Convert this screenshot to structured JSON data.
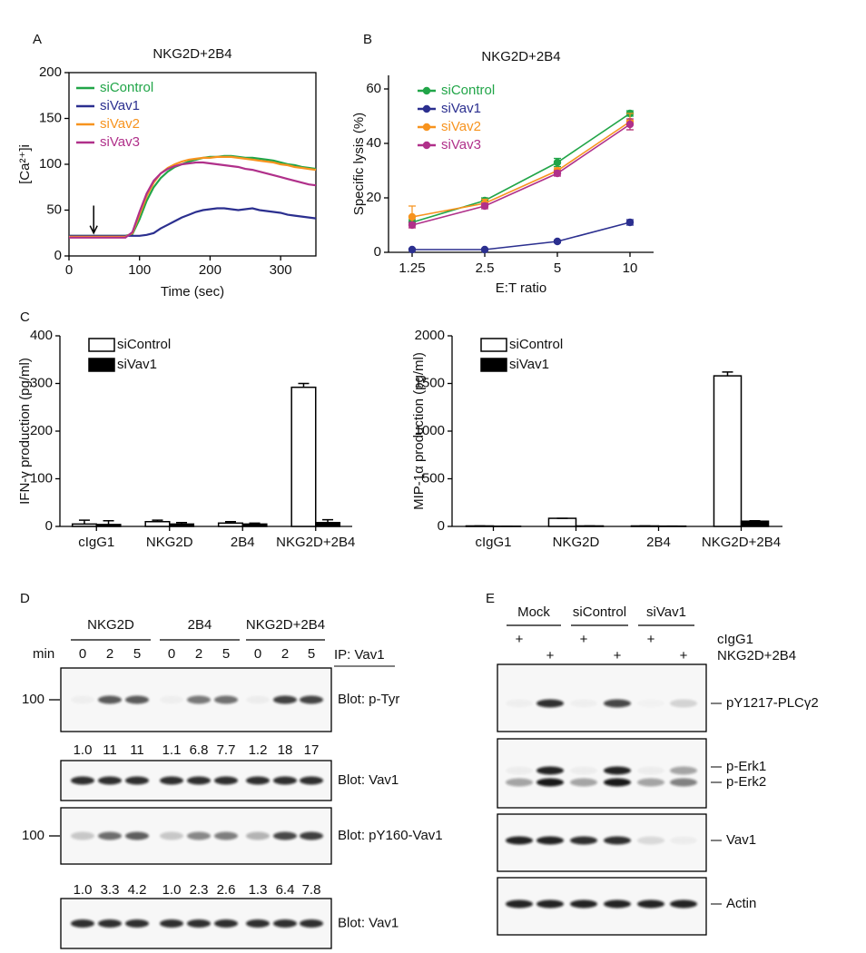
{
  "panel_labels": [
    "A",
    "B",
    "C",
    "D",
    "E"
  ],
  "chart_data": [
    {
      "type": "line",
      "title": "NKG2D+2B4",
      "xlabel": "Time (sec)",
      "ylabel": "[Ca²⁺]i",
      "x": [
        0,
        10,
        20,
        30,
        40,
        50,
        60,
        70,
        80,
        90,
        100,
        110,
        120,
        130,
        140,
        150,
        160,
        170,
        180,
        190,
        200,
        210,
        220,
        230,
        240,
        250,
        260,
        270,
        280,
        290,
        300,
        310,
        320,
        330,
        340,
        350
      ],
      "series": [
        {
          "name": "siControl",
          "color": "#21a548",
          "values": [
            22,
            22,
            22,
            22,
            22,
            22,
            22,
            22,
            22,
            24,
            40,
            60,
            75,
            85,
            92,
            97,
            100,
            103,
            105,
            107,
            108,
            108,
            109,
            109,
            108,
            107,
            107,
            106,
            105,
            104,
            102,
            100,
            99,
            97,
            96,
            95
          ]
        },
        {
          "name": "siVav1",
          "color": "#2b2f8f",
          "values": [
            22,
            22,
            22,
            22,
            22,
            22,
            22,
            22,
            22,
            22,
            22,
            23,
            25,
            30,
            34,
            38,
            42,
            45,
            48,
            50,
            51,
            52,
            52,
            51,
            50,
            51,
            52,
            50,
            49,
            48,
            47,
            45,
            44,
            43,
            42,
            41
          ]
        },
        {
          "name": "siVav2",
          "color": "#f7931e",
          "values": [
            21,
            21,
            21,
            21,
            21,
            21,
            21,
            21,
            21,
            25,
            45,
            65,
            80,
            90,
            96,
            100,
            103,
            105,
            106,
            107,
            107,
            108,
            108,
            108,
            107,
            106,
            105,
            104,
            103,
            102,
            100,
            99,
            97,
            96,
            95,
            94
          ]
        },
        {
          "name": "siVav3",
          "color": "#b0308a",
          "values": [
            20,
            20,
            20,
            20,
            20,
            20,
            20,
            20,
            20,
            26,
            48,
            68,
            82,
            90,
            95,
            98,
            100,
            101,
            102,
            102,
            101,
            100,
            99,
            98,
            97,
            95,
            94,
            92,
            90,
            88,
            86,
            84,
            82,
            80,
            78,
            77
          ]
        }
      ],
      "xlim": [
        0,
        350
      ],
      "xticks": [
        0,
        100,
        200,
        300
      ],
      "ylim": [
        0,
        200
      ],
      "yticks": [
        0,
        50,
        100,
        150,
        200
      ],
      "frame": true,
      "legend": "upper left"
    },
    {
      "type": "line",
      "title": "NKG2D+2B4",
      "xlabel": "E:T ratio",
      "ylabel": "Specific lysis (%)",
      "categories": [
        "1.25",
        "2.5",
        "5",
        "10"
      ],
      "series": [
        {
          "name": "siControl",
          "color": "#21a548",
          "values": [
            11,
            19,
            33,
            51
          ],
          "errors": [
            1,
            1,
            1.5,
            1
          ]
        },
        {
          "name": "siVav1",
          "color": "#2b2f8f",
          "values": [
            1,
            1,
            4,
            11
          ],
          "errors": [
            0.3,
            0.3,
            0.5,
            1
          ]
        },
        {
          "name": "siVav2",
          "color": "#f7931e",
          "values": [
            13,
            18,
            30,
            48
          ],
          "errors": [
            4,
            1.5,
            1,
            3
          ]
        },
        {
          "name": "siVav3",
          "color": "#b0308a",
          "values": [
            10,
            17,
            29,
            47
          ],
          "errors": [
            1,
            1,
            1,
            2
          ]
        }
      ],
      "ylim": [
        0,
        65
      ],
      "yticks": [
        0,
        20,
        40,
        60
      ],
      "markers": true,
      "legend": "upper left"
    },
    {
      "type": "bar",
      "ylabel": "IFN-γ production (pg/ml)",
      "categories": [
        "cIgG1",
        "NKG2D",
        "2B4",
        "NKG2D+2B4"
      ],
      "series": [
        {
          "name": "siControl",
          "color": "#ffffff",
          "values": [
            5,
            10,
            7,
            292
          ],
          "errors": [
            8,
            3,
            3,
            8
          ]
        },
        {
          "name": "siVav1",
          "color": "#000000",
          "values": [
            4,
            5,
            5,
            8
          ],
          "errors": [
            8,
            3,
            2,
            6
          ]
        }
      ],
      "ylim": [
        0,
        400
      ],
      "yticks": [
        0,
        100,
        200,
        300,
        400
      ],
      "legend": "upper left"
    },
    {
      "type": "bar",
      "ylabel": "MIP-1α production (pg/ml)",
      "categories": [
        "cIgG1",
        "NKG2D",
        "2B4",
        "NKG2D+2B4"
      ],
      "series": [
        {
          "name": "siControl",
          "color": "#ffffff",
          "values": [
            5,
            85,
            5,
            1580
          ],
          "errors": [
            0,
            0,
            0,
            40
          ]
        },
        {
          "name": "siVav1",
          "color": "#000000",
          "values": [
            2,
            5,
            3,
            55
          ],
          "errors": [
            0,
            0,
            0,
            5
          ]
        }
      ],
      "ylim": [
        0,
        2000
      ],
      "yticks": [
        0,
        500,
        1000,
        1500,
        2000
      ],
      "legend": "upper left"
    }
  ],
  "blot_d": {
    "header_groups": [
      "NKG2D",
      "2B4",
      "NKG2D+2B4"
    ],
    "time_label": "min",
    "times": [
      "0",
      "2",
      "5",
      "0",
      "2",
      "5",
      "0",
      "2",
      "5"
    ],
    "ip_label": "IP: Vav1",
    "blots": [
      {
        "label": "Blot: p-Tyr",
        "marker": "100",
        "quantification": [
          "1.0",
          "11",
          "11",
          "1.1",
          "6.8",
          "7.7",
          "1.2",
          "18",
          "17"
        ]
      },
      {
        "label": "Blot: Vav1"
      },
      {
        "label": "Blot: pY160-Vav1",
        "marker": "100",
        "quantification": [
          "1.0",
          "3.3",
          "4.2",
          "1.0",
          "2.3",
          "2.6",
          "1.3",
          "6.4",
          "7.8"
        ]
      },
      {
        "label": "Blot: Vav1"
      }
    ]
  },
  "blot_e": {
    "groups": [
      "Mock",
      "siControl",
      "siVav1"
    ],
    "treatments": [
      {
        "label": "cIgG1",
        "signs": [
          "+",
          "+",
          "+"
        ]
      },
      {
        "label": "NKG2D+2B4",
        "signs": [
          "+",
          "+",
          "+"
        ]
      }
    ],
    "blots": [
      {
        "labels": [
          "pY1217-PLCγ2"
        ]
      },
      {
        "labels": [
          "p-Erk1",
          "p-Erk2"
        ]
      },
      {
        "labels": [
          "Vav1"
        ]
      },
      {
        "labels": [
          "Actin"
        ]
      }
    ]
  }
}
